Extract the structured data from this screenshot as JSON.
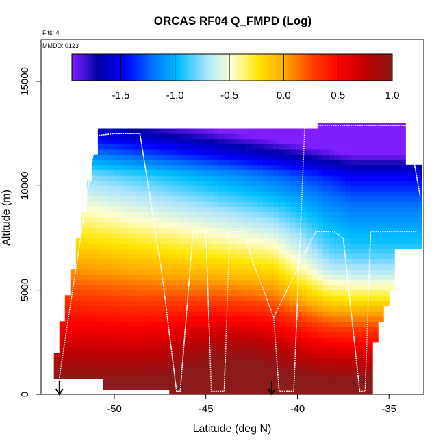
{
  "chart_data": {
    "type": "heatmap",
    "title": "ORCAS RF04 Q_FMPD (Log)",
    "annotations": {
      "flights": "Flts: 4",
      "date": "MMDD: 0123"
    },
    "xlabel": "Latitude (deg N)",
    "ylabel": "Altitude (m)",
    "xlim": [
      -54.0,
      -33.1
    ],
    "ylim": [
      0,
      17000
    ],
    "x_ticks": [
      -50,
      -45,
      -40,
      -35
    ],
    "x_tick_labels": [
      "-50",
      "-45",
      "-40",
      "-35"
    ],
    "y_ticks": [
      0,
      5000,
      10000,
      15000
    ],
    "y_tick_labels": [
      "0",
      "5000",
      "10000",
      "15000"
    ],
    "colorbar": {
      "range": [
        -1.95,
        1.0
      ],
      "ticks": [
        -1.5,
        -1.0,
        -0.5,
        0.0,
        0.5,
        1.0
      ],
      "tick_labels": [
        "-1.5",
        "-1.0",
        "-0.5",
        "0.0",
        "0.5",
        "1.0"
      ],
      "colors": [
        "#7f1fff",
        "#0000a8",
        "#0000ff",
        "#0070ff",
        "#00bfff",
        "#a6e3ff",
        "#ffffd0",
        "#ffe600",
        "#ffa500",
        "#ff4000",
        "#ff0000",
        "#c00000",
        "#8b1a1a"
      ]
    },
    "flight_track": {
      "lat": [
        -53.0,
        -51.0,
        -50.0,
        -48.6,
        -47.4,
        -46.6,
        -46.4,
        -45.7,
        -45.0,
        -44.7,
        -44.0,
        -43.7,
        -42.9,
        -42.5,
        -41.3,
        -41.0,
        -40.2,
        -39.6,
        -39.0,
        -38.5,
        -37.9,
        -37.3,
        -36.6,
        -36.2,
        -35.2,
        -34.0,
        -33.5,
        -33.3
      ],
      "alt": [
        800,
        12400,
        12500,
        12500,
        5800,
        150,
        150,
        7800,
        7800,
        150,
        150,
        7800,
        7800,
        6500,
        3700,
        150,
        150,
        12800,
        12900,
        12900,
        12900,
        12900,
        12900,
        12900,
        12900,
        12900,
        10500,
        9500
      ]
    },
    "track2": {
      "lat": [
        -41.3,
        -39.0,
        -38.0,
        -37.5,
        -36.6,
        -36.3,
        -36.0,
        -35.8,
        -33.5
      ],
      "alt": [
        3700,
        7800,
        7800,
        7500,
        150,
        150,
        7800,
        7800,
        7800
      ]
    },
    "markers": {
      "drop_lat": [
        -53.0,
        -41.4
      ]
    }
  }
}
